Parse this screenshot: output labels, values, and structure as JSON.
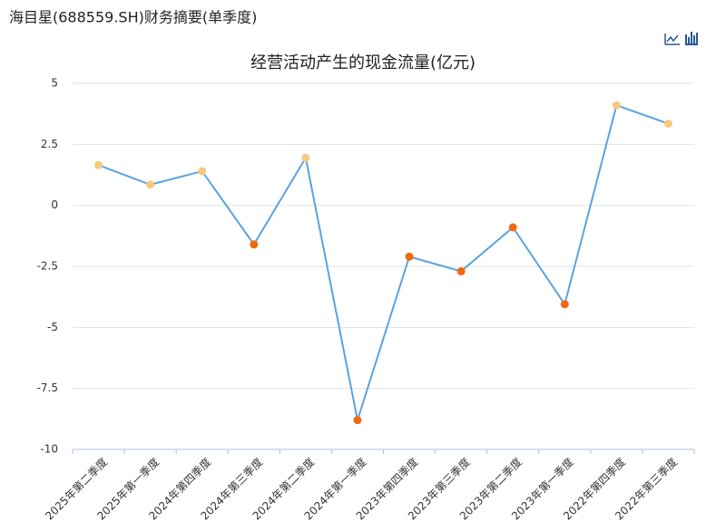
{
  "header": {
    "title": "海目星(688559.SH)财务摘要(单季度)"
  },
  "chart_data": {
    "type": "line",
    "title": "经营活动产生的现金流量(亿元)",
    "categories": [
      "2025年第二季度",
      "2025年第一季度",
      "2024年第四季度",
      "2024年第三季度",
      "2024年第二季度",
      "2024年第一季度",
      "2023年第四季度",
      "2023年第三季度",
      "2023年第二季度",
      "2023年第一季度",
      "2022年第四季度",
      "2022年第三季度"
    ],
    "values": [
      1.65,
      0.85,
      1.4,
      -1.6,
      1.95,
      -8.8,
      -2.1,
      -2.7,
      -0.9,
      -4.05,
      4.1,
      3.35
    ],
    "color": "#5ba3e0",
    "positive_color": "#f7c97e",
    "negative_color": "#f0690f",
    "ylim": [
      -10,
      5
    ],
    "yticks": [
      -10,
      -7.5,
      -5,
      -2.5,
      0,
      2.5,
      5
    ],
    "grid": true
  }
}
